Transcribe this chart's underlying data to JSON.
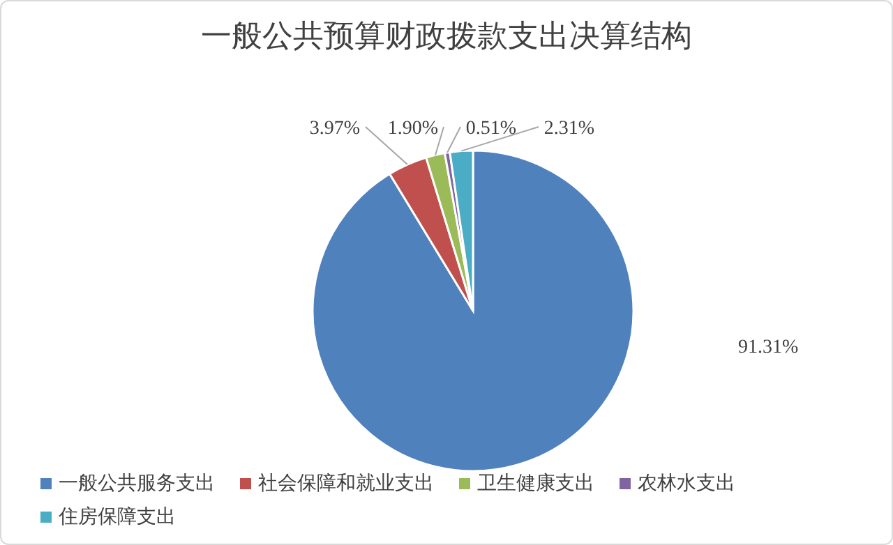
{
  "chart_data": {
    "type": "pie",
    "title": "一般公共预算财政拨款支出决算结构",
    "categories": [
      "一般公共服务支出",
      "社会保障和就业支出",
      "卫生健康支出",
      "农林水支出",
      "住房保障支出"
    ],
    "values": [
      91.31,
      3.97,
      1.9,
      0.51,
      2.31
    ],
    "colors": [
      "#4f81bd",
      "#c0504d",
      "#9bbb59",
      "#8064a2",
      "#4bacc6"
    ],
    "value_labels": [
      "91.31%",
      "3.97%",
      "1.90%",
      "0.51%",
      "2.31%"
    ],
    "legend": "bottom"
  }
}
